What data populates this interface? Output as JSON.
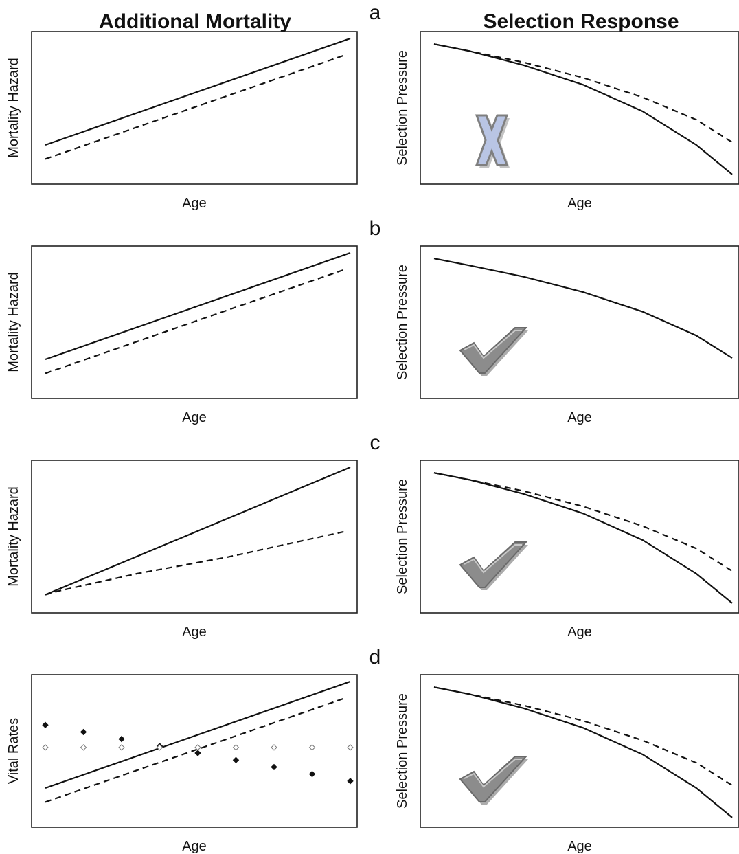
{
  "column_titles": {
    "left": "Additional Mortality",
    "right": "Selection Response"
  },
  "colors": {
    "line": "#111111",
    "cross_fill": "#b9c5e4",
    "check_fill": "#8c8c8c"
  },
  "chart_data": [
    {
      "panel": "a",
      "side": "left",
      "type": "line",
      "xlabel": "Age",
      "ylabel": "Mortality Hazard",
      "xlim": [
        0,
        1
      ],
      "ylim": [
        0,
        1
      ],
      "series": [
        {
          "style": "solid",
          "x": [
            0,
            1
          ],
          "y": [
            0.24,
            1.0
          ]
        },
        {
          "style": "dashed",
          "x": [
            0,
            0.98
          ],
          "y": [
            0.14,
            0.88
          ]
        }
      ]
    },
    {
      "panel": "a",
      "side": "right",
      "type": "line",
      "xlabel": "Age",
      "ylabel": "Selection Pressure",
      "xlim": [
        0,
        1
      ],
      "ylim": [
        0,
        1
      ],
      "marker": "cross-icon",
      "series": [
        {
          "style": "solid",
          "x": [
            0,
            0.12,
            0.3,
            0.5,
            0.7,
            0.88,
            1
          ],
          "y": [
            0.96,
            0.91,
            0.81,
            0.67,
            0.48,
            0.24,
            0.03
          ]
        },
        {
          "style": "dashed",
          "x": [
            0,
            0.12,
            0.3,
            0.5,
            0.7,
            0.88,
            1
          ],
          "y": [
            0.96,
            0.91,
            0.83,
            0.72,
            0.58,
            0.42,
            0.26
          ]
        }
      ]
    },
    {
      "panel": "b",
      "side": "left",
      "type": "line",
      "xlabel": "Age",
      "ylabel": "Mortality Hazard",
      "xlim": [
        0,
        1
      ],
      "ylim": [
        0,
        1
      ],
      "series": [
        {
          "style": "solid",
          "x": [
            0,
            1
          ],
          "y": [
            0.24,
            1.0
          ]
        },
        {
          "style": "dashed",
          "x": [
            0,
            0.98
          ],
          "y": [
            0.14,
            0.88
          ]
        }
      ]
    },
    {
      "panel": "b",
      "side": "right",
      "type": "line",
      "xlabel": "Age",
      "ylabel": "Selection Pressure",
      "xlim": [
        0,
        1
      ],
      "ylim": [
        0,
        1
      ],
      "marker": "check-icon",
      "series": [
        {
          "style": "solid",
          "x": [
            0,
            0.12,
            0.3,
            0.5,
            0.7,
            0.88,
            1
          ],
          "y": [
            0.96,
            0.91,
            0.83,
            0.72,
            0.58,
            0.41,
            0.25
          ]
        }
      ]
    },
    {
      "panel": "c",
      "side": "left",
      "type": "line",
      "xlabel": "Age",
      "ylabel": "Mortality Hazard",
      "xlim": [
        0,
        1
      ],
      "ylim": [
        0,
        1
      ],
      "series": [
        {
          "style": "solid",
          "x": [
            0,
            1
          ],
          "y": [
            0.09,
            1.0
          ]
        },
        {
          "style": "dashed",
          "x": [
            0,
            0.05,
            0.3,
            0.6,
            0.98
          ],
          "y": [
            0.09,
            0.12,
            0.24,
            0.36,
            0.54
          ]
        }
      ]
    },
    {
      "panel": "c",
      "side": "right",
      "type": "line",
      "xlabel": "Age",
      "ylabel": "Selection Pressure",
      "xlim": [
        0,
        1
      ],
      "ylim": [
        0,
        1
      ],
      "marker": "check-icon",
      "series": [
        {
          "style": "solid",
          "x": [
            0,
            0.12,
            0.3,
            0.5,
            0.7,
            0.88,
            1
          ],
          "y": [
            0.96,
            0.91,
            0.81,
            0.67,
            0.48,
            0.24,
            0.03
          ]
        },
        {
          "style": "dashed",
          "x": [
            0,
            0.12,
            0.3,
            0.5,
            0.7,
            0.88,
            1
          ],
          "y": [
            0.96,
            0.91,
            0.83,
            0.72,
            0.58,
            0.42,
            0.26
          ]
        }
      ]
    },
    {
      "panel": "d",
      "side": "left",
      "type": "line",
      "xlabel": "Age",
      "ylabel": "Vital Rates",
      "xlim": [
        0,
        1
      ],
      "ylim": [
        0,
        1
      ],
      "series": [
        {
          "style": "solid",
          "x": [
            0,
            1
          ],
          "y": [
            0.24,
            1.0
          ]
        },
        {
          "style": "dashed",
          "x": [
            0,
            0.98
          ],
          "y": [
            0.14,
            0.88
          ]
        },
        {
          "style": "filled-diamond",
          "x": [
            0,
            0.125,
            0.25,
            0.375,
            0.5,
            0.625,
            0.75,
            0.875,
            1
          ],
          "y": [
            0.69,
            0.64,
            0.59,
            0.54,
            0.49,
            0.44,
            0.39,
            0.34,
            0.29
          ]
        },
        {
          "style": "open-diamond",
          "x": [
            0,
            0.125,
            0.25,
            0.375,
            0.5,
            0.625,
            0.75,
            0.875,
            1
          ],
          "y": [
            0.53,
            0.53,
            0.53,
            0.53,
            0.53,
            0.53,
            0.53,
            0.53,
            0.53
          ]
        }
      ]
    },
    {
      "panel": "d",
      "side": "right",
      "type": "line",
      "xlabel": "Age",
      "ylabel": "Selection Pressure",
      "xlim": [
        0,
        1
      ],
      "ylim": [
        0,
        1
      ],
      "marker": "check-icon",
      "series": [
        {
          "style": "solid",
          "x": [
            0,
            0.12,
            0.3,
            0.5,
            0.7,
            0.88,
            1
          ],
          "y": [
            0.96,
            0.91,
            0.81,
            0.67,
            0.48,
            0.24,
            0.03
          ]
        },
        {
          "style": "dashed",
          "x": [
            0,
            0.12,
            0.3,
            0.5,
            0.7,
            0.88,
            1
          ],
          "y": [
            0.96,
            0.91,
            0.83,
            0.72,
            0.58,
            0.42,
            0.26
          ]
        }
      ]
    }
  ]
}
